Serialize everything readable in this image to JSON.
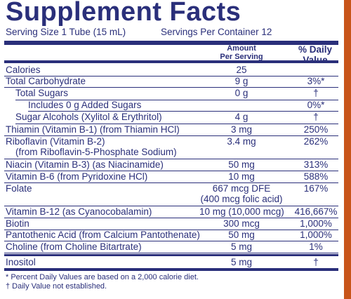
{
  "title": "Supplement Facts",
  "serving_size": "Serving Size 1 Tube (15 mL)",
  "servings_per_container": "Servings Per Container 12",
  "header": {
    "amount_line1": "Amount",
    "amount_line2": "Per Serving",
    "dv_line1": "% Daily",
    "dv_line2": "Value"
  },
  "rows": [
    {
      "name": "Calories",
      "amount": "25",
      "dv": ""
    },
    {
      "name": "Total Carbohydrate",
      "amount": "9 g",
      "dv": "3%*"
    },
    {
      "name": "Total Sugars",
      "amount": "0 g",
      "dv": "†"
    },
    {
      "name": "Includes 0 g Added Sugars",
      "amount": "",
      "dv": "0%*"
    },
    {
      "name": "Sugar Alcohols (Xylitol & Erythritol)",
      "amount": "4 g",
      "dv": "†"
    },
    {
      "name": "Thiamin (Vitamin B-1) (from Thiamin HCl)",
      "amount": "3 mg",
      "dv": "250%"
    },
    {
      "name": "Riboflavin (Vitamin B-2)",
      "name2": "(from Riboflavin-5-Phosphate Sodium)",
      "amount": "3.4 mg",
      "dv": "262%"
    },
    {
      "name": "Niacin (Vitamin B-3) (as Niacinamide)",
      "amount": "50 mg",
      "dv": "313%"
    },
    {
      "name": "Vitamin B-6 (from Pyridoxine HCl)",
      "amount": "10 mg",
      "dv": "588%"
    },
    {
      "name": "Folate",
      "amount": "667 mcg DFE",
      "amount2": "(400 mcg folic acid)",
      "dv": "167%"
    },
    {
      "name": "Vitamin B-12 (as Cyanocobalamin)",
      "amount": "10 mg (10,000 mcg)",
      "dv": "416,667%"
    },
    {
      "name": "Biotin",
      "amount": "300 mcg",
      "dv": "1,000%"
    },
    {
      "name": "Pantothenic Acid (from Calcium Pantothenate)",
      "amount": "50 mg",
      "dv": "1,000%"
    },
    {
      "name": "Choline (from Choline Bitartrate)",
      "amount": "5 mg",
      "dv": "1%"
    },
    {
      "name": "Inositol",
      "amount": "5 mg",
      "dv": "†"
    }
  ],
  "footnotes": [
    "* Percent Daily Values are based on a 2,000 calorie diet.",
    "† Daily Value not established."
  ],
  "colors": {
    "ink": "#2a2f7a",
    "border": "#c8551a",
    "panel": "#ffffff"
  }
}
